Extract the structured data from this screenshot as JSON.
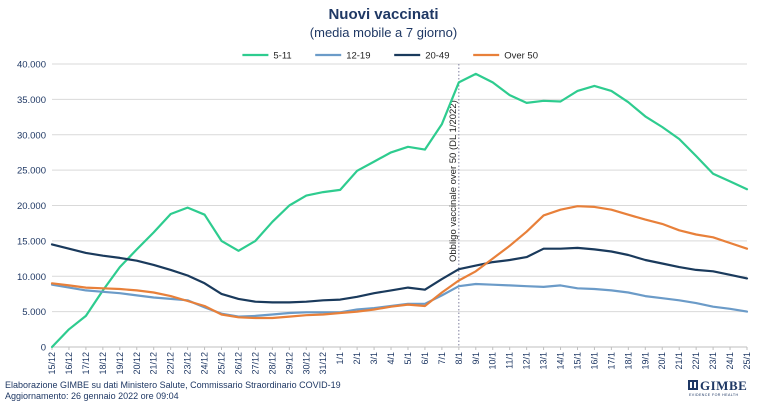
{
  "chart_data": {
    "type": "line",
    "title": "Nuovi vaccinati",
    "subtitle": "(media mobile a 7 giorno)",
    "categories": [
      "15/12",
      "16/12",
      "17/12",
      "18/12",
      "19/12",
      "20/12",
      "21/12",
      "22/12",
      "23/12",
      "24/12",
      "25/12",
      "26/12",
      "27/12",
      "28/12",
      "29/12",
      "30/12",
      "31/12",
      "1/1",
      "2/1",
      "3/1",
      "4/1",
      "5/1",
      "6/1",
      "7/1",
      "8/1",
      "9/1",
      "10/1",
      "11/1",
      "12/1",
      "13/1",
      "14/1",
      "15/1",
      "16/1",
      "17/1",
      "18/1",
      "19/1",
      "20/1",
      "21/1",
      "22/1",
      "23/1",
      "24/1",
      "25/1"
    ],
    "series": [
      {
        "name": "5-11",
        "color": "#2ecc8f",
        "values": [
          0,
          2500,
          4400,
          8000,
          11300,
          13800,
          16200,
          18800,
          19700,
          18700,
          15000,
          13600,
          15000,
          17700,
          20000,
          21400,
          21900,
          22200,
          24900,
          26200,
          27500,
          28300,
          27900,
          31500,
          37400,
          38600,
          37400,
          35600,
          34500,
          34800,
          34700,
          36200,
          36900,
          36200,
          34600,
          32600,
          31100,
          29400,
          27000,
          24500,
          23400,
          22300
        ]
      },
      {
        "name": "12-19",
        "color": "#6b9bc8",
        "values": [
          8800,
          8400,
          8000,
          7800,
          7600,
          7300,
          7000,
          6800,
          6600,
          5600,
          4700,
          4300,
          4400,
          4600,
          4800,
          4900,
          4900,
          4900,
          5300,
          5500,
          5800,
          6100,
          6100,
          7300,
          8600,
          8900,
          8800,
          8700,
          8600,
          8500,
          8700,
          8300,
          8200,
          8000,
          7700,
          7200,
          6900,
          6600,
          6200,
          5700,
          5400,
          5000
        ]
      },
      {
        "name": "20-49",
        "color": "#1a3a5c",
        "values": [
          14500,
          13900,
          13300,
          12900,
          12600,
          12200,
          11600,
          10900,
          10100,
          9000,
          7500,
          6800,
          6400,
          6300,
          6300,
          6400,
          6600,
          6700,
          7100,
          7600,
          8000,
          8400,
          8100,
          9600,
          11000,
          11500,
          12000,
          12300,
          12700,
          13900,
          13900,
          14000,
          13800,
          13500,
          13000,
          12300,
          11800,
          11300,
          10900,
          10700,
          10200,
          9700
        ]
      },
      {
        "name": "Over 50",
        "color": "#e8803a",
        "values": [
          9000,
          8700,
          8400,
          8300,
          8200,
          8000,
          7700,
          7200,
          6500,
          5800,
          4600,
          4200,
          4100,
          4100,
          4300,
          4500,
          4600,
          4800,
          5000,
          5300,
          5700,
          6000,
          5800,
          7700,
          9400,
          10700,
          12500,
          14300,
          16300,
          18600,
          19400,
          19900,
          19800,
          19400,
          18700,
          18000,
          17400,
          16500,
          15900,
          15500,
          14700,
          13900
        ]
      }
    ],
    "ylim": [
      0,
      40000
    ],
    "yticks": [
      0,
      5000,
      10000,
      15000,
      20000,
      25000,
      30000,
      35000,
      40000
    ],
    "ytick_labels": [
      "0",
      "5.000",
      "10.000",
      "15.000",
      "20.000",
      "25.000",
      "30.000",
      "35.000",
      "40.000"
    ],
    "legend_position": "top",
    "grid": true,
    "annotation": {
      "label": "Obbligo vaccinale over 50 (DL 1/2022)",
      "at_category": "8/1"
    }
  },
  "footer": {
    "line1": "Elaborazione GIMBE su dati Ministero Salute, Commissario Straordinario COVID-19",
    "line2": "Aggiornamento: 26 gennaio 2022 ore 09:04"
  },
  "logo": {
    "word": "GIMBE",
    "tagline": "EVIDENCE FOR HEALTH",
    "color": "#1f3864"
  }
}
